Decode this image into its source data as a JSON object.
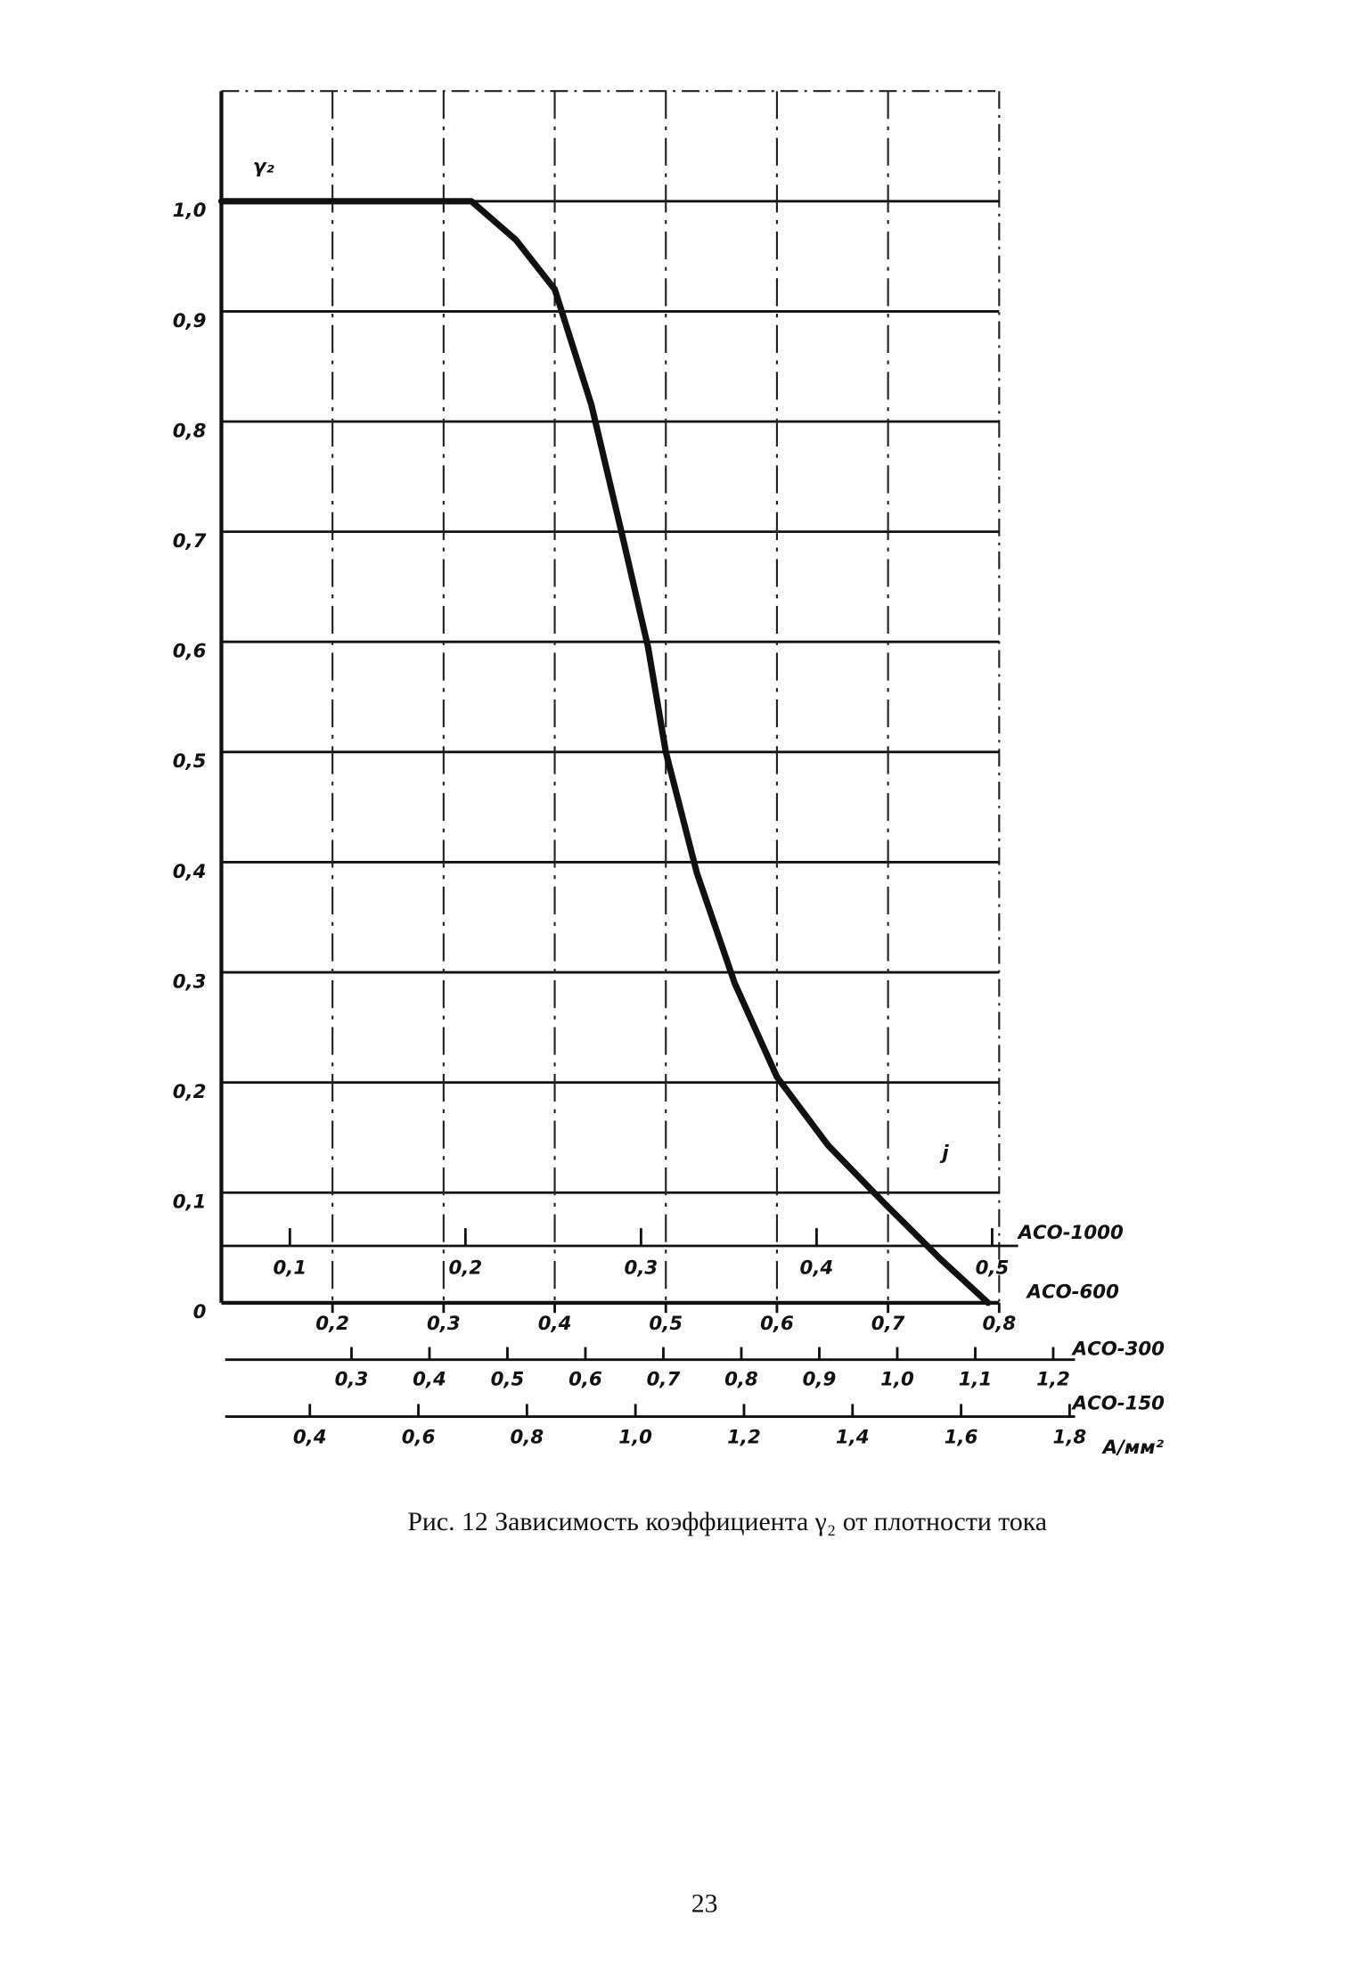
{
  "chart_data": {
    "type": "line",
    "y_label": "γ₂",
    "x_label": "j",
    "ylim": [
      0,
      1.1
    ],
    "yticks": [
      0,
      {
        "value": 0.1,
        "label": "0,1"
      },
      {
        "value": 0.2,
        "label": "0,2"
      },
      {
        "value": 0.3,
        "label": "0,3"
      },
      {
        "value": 0.4,
        "label": "0,4"
      },
      {
        "value": 0.5,
        "label": "0,5"
      },
      {
        "value": 0.6,
        "label": "0,6"
      },
      {
        "value": 0.7,
        "label": "0,7"
      },
      {
        "value": 0.8,
        "label": "0,8"
      },
      {
        "value": 0.9,
        "label": "0,9"
      },
      {
        "value": 1.0,
        "label": "1,0"
      }
    ],
    "x_axis_name": "АСО-600",
    "xlim": [
      0.1,
      0.8
    ],
    "xticks": [
      {
        "value": 0.2,
        "label": "0,2"
      },
      {
        "value": 0.3,
        "label": "0,3"
      },
      {
        "value": 0.4,
        "label": "0,4"
      },
      {
        "value": 0.5,
        "label": "0,5"
      },
      {
        "value": 0.6,
        "label": "0,6"
      },
      {
        "value": 0.7,
        "label": "0,7"
      },
      {
        "value": 0.8,
        "label": "0,8"
      }
    ],
    "x": [
      0.1,
      0.325,
      0.365,
      0.4,
      0.433,
      0.46,
      0.484,
      0.5,
      0.528,
      0.562,
      0.6,
      0.646,
      0.697,
      0.747,
      0.79
    ],
    "series": [
      {
        "color": "#111111",
        "values": [
          1.0,
          1.0,
          0.965,
          0.92,
          0.815,
          0.7,
          0.595,
          0.5,
          0.39,
          0.29,
          0.205,
          0.143,
          0.09,
          0.04,
          0.0
        ]
      }
    ],
    "extra_x_axes": [
      {
        "name": "АСО-1000",
        "xlim": [
          0.061,
          0.504
        ],
        "xticks": [
          {
            "value": 0.1,
            "label": "0,1"
          },
          {
            "value": 0.2,
            "label": "0,2"
          },
          {
            "value": 0.3,
            "label": "0,3"
          },
          {
            "value": 0.4,
            "label": "0,4"
          },
          {
            "value": 0.5,
            "label": "0,5"
          }
        ]
      },
      {
        "name": "АСО-300",
        "xlim": [
          0.138,
          1.228
        ],
        "xticks": [
          {
            "value": 0.3,
            "label": "0,3"
          },
          {
            "value": 0.4,
            "label": "0,4"
          },
          {
            "value": 0.5,
            "label": "0,5"
          },
          {
            "value": 0.6,
            "label": "0,6"
          },
          {
            "value": 0.7,
            "label": "0,7"
          },
          {
            "value": 0.8,
            "label": "0,8"
          },
          {
            "value": 0.9,
            "label": "0,9"
          },
          {
            "value": 1.0,
            "label": "1,0"
          },
          {
            "value": 1.1,
            "label": "1,1"
          },
          {
            "value": 1.2,
            "label": "1,2"
          }
        ]
      },
      {
        "name": "АСО-150",
        "xlim": [
          0.244,
          1.81
        ],
        "xticks": [
          {
            "value": 0.4,
            "label": "0,4"
          },
          {
            "value": 0.6,
            "label": "0,6"
          },
          {
            "value": 0.8,
            "label": "0,8"
          },
          {
            "value": 1.0,
            "label": "1,0"
          },
          {
            "value": 1.2,
            "label": "1,2"
          },
          {
            "value": 1.4,
            "label": "1,4"
          },
          {
            "value": 1.6,
            "label": "1,6"
          },
          {
            "value": 1.8,
            "label": "1,8"
          }
        ]
      }
    ],
    "x_unit": "А/мм²"
  },
  "caption": "Рис. 12 Зависимость коэффициента γ₂ от плотности тока",
  "page_number": "23"
}
